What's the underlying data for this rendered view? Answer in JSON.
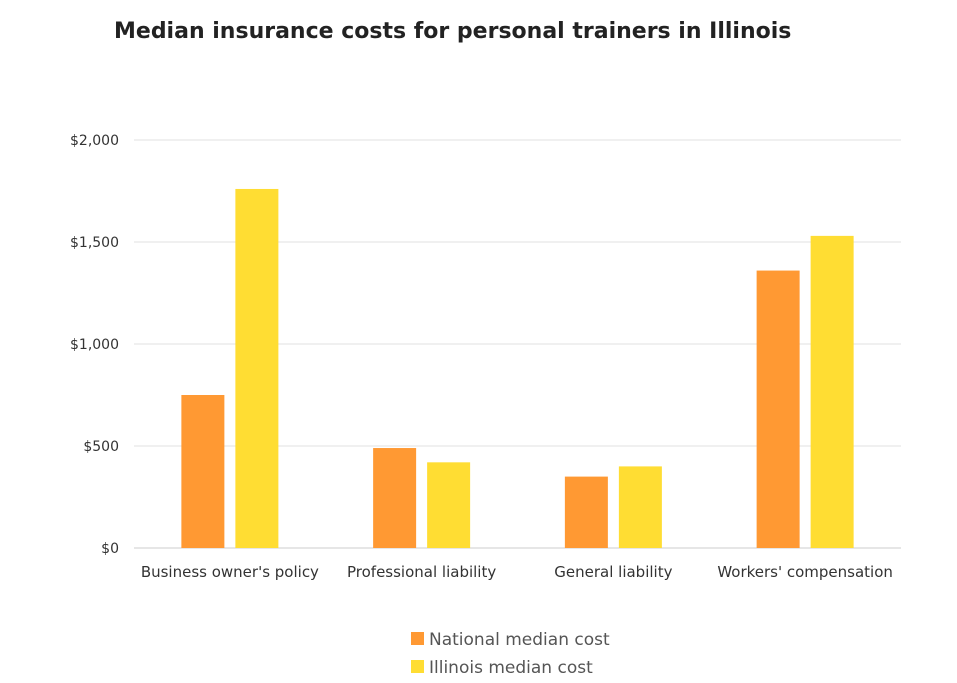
{
  "chart_data": {
    "type": "bar",
    "title": "Median insurance costs for personal trainers in Illinois",
    "categories": [
      "Business owner's policy",
      "Professional liability",
      "General liability",
      "Workers' compensation"
    ],
    "series": [
      {
        "name": "National median cost",
        "color": "#FF9933",
        "values": [
          750,
          490,
          350,
          1360
        ]
      },
      {
        "name": "Illinois median cost",
        "color": "#FFDD33",
        "values": [
          1760,
          420,
          400,
          1530
        ]
      }
    ],
    "yticks": [
      0,
      500,
      1000,
      1500,
      2000
    ],
    "ytick_labels": [
      "$0",
      "$500",
      "$1,000",
      "$1,500",
      "$2,000"
    ],
    "ylim": [
      0,
      2000
    ],
    "grid": true,
    "legend_position": "bottom"
  }
}
